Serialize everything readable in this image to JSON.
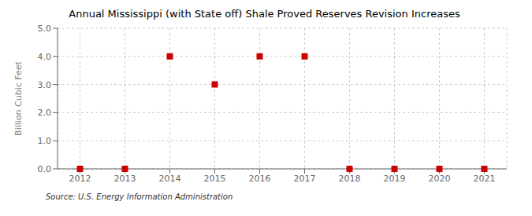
{
  "chart_data": {
    "type": "scatter",
    "title": "Annual Mississippi (with State off) Shale Proved Reserves Revision Increases",
    "ylabel": "Billion Cubic Feet",
    "annotations": [
      "Source: U.S. Energy Information Administration"
    ],
    "x": [
      2012,
      2013,
      2014,
      2015,
      2016,
      2017,
      2018,
      2019,
      2020,
      2021
    ],
    "values": [
      0.0,
      0.0,
      4.0,
      3.0,
      4.0,
      4.0,
      0.0,
      0.0,
      0.0,
      0.0
    ],
    "xlim": [
      2011.5,
      2021.5
    ],
    "xticks": [
      2012,
      2013,
      2014,
      2015,
      2016,
      2017,
      2018,
      2019,
      2020,
      2021
    ],
    "ylim": [
      0.0,
      5.0
    ],
    "yticks": [
      {
        "value": 0,
        "label": "0.0"
      },
      {
        "value": 1,
        "label": "1.0"
      },
      {
        "value": 2,
        "label": "2.0"
      },
      {
        "value": 3,
        "label": "3.0"
      },
      {
        "value": 4,
        "label": "4.0"
      },
      {
        "value": 5,
        "label": "5.0"
      }
    ],
    "color": "#cc0000",
    "marker": "square",
    "grid": true
  }
}
